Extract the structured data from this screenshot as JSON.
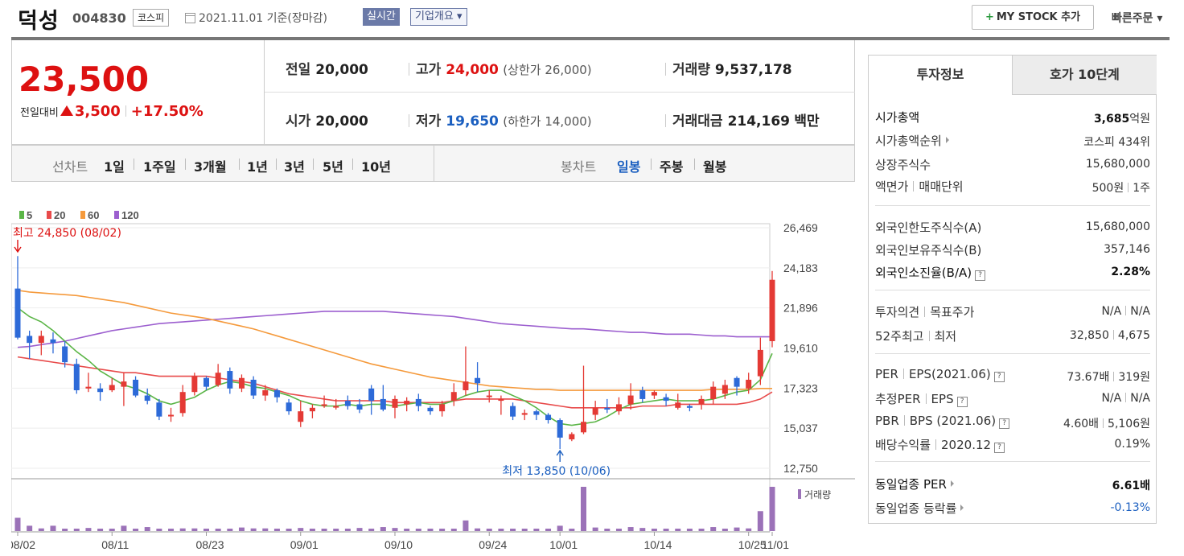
{
  "header": {
    "name": "덕성",
    "code": "004830",
    "market": "코스피",
    "date": "2021.11.01 기준(장마감)",
    "realtime": "실시간",
    "company": "기업개요 ▾",
    "mystock": "MY STOCK 추가",
    "mystock_plus": "+",
    "quick": "빠른주문 ▾"
  },
  "price": {
    "current": "23,500",
    "change_label": "전일대비",
    "change": "3,500",
    "change_pct": "+17.50%",
    "prev_label": "전일",
    "prev": "20,000",
    "open_label": "시가",
    "open": "20,000",
    "high_label": "고가",
    "high": "24,000",
    "high_limit": "(상한가 26,000)",
    "low_label": "저가",
    "low": "19,650",
    "low_limit": "(하한가 14,000)",
    "volume_label": "거래량",
    "volume": "9,537,178",
    "amount_label": "거래대금",
    "amount": "214,169",
    "amount_unit": "백만"
  },
  "toolbar": {
    "line_label": "선차트",
    "periods": [
      "1일",
      "1주일",
      "3개월",
      "1년",
      "3년",
      "5년",
      "10년"
    ],
    "candle_label": "봉차트",
    "candles": [
      "일봉",
      "주봉",
      "월봉"
    ],
    "active_candle": "일봉"
  },
  "chart_data": {
    "type": "candlestick",
    "legend": [
      "5",
      "20",
      "60",
      "120"
    ],
    "legend_colors": [
      "#5ab546",
      "#e84a4a",
      "#f59a3c",
      "#9c5fcf"
    ],
    "yticks": [
      "26,469",
      "24,183",
      "21,896",
      "19,610",
      "17,323",
      "15,037",
      "12,750"
    ],
    "ylim": [
      12750,
      26469
    ],
    "xticks": [
      "08/02",
      "08/11",
      "08/23",
      "09/01",
      "09/10",
      "09/24",
      "10/01",
      "10/14",
      "10/25",
      "11/01"
    ],
    "high_note": "최고 24,850 (08/02)",
    "low_note": "최저 13,850 (10/06)",
    "volume_label": "거래량",
    "candles": [
      [
        23000,
        20200,
        24850,
        20100
      ],
      [
        20300,
        19900,
        20600,
        19000
      ],
      [
        19900,
        20300,
        20600,
        19200
      ],
      [
        20100,
        19900,
        20500,
        19300
      ],
      [
        19700,
        18800,
        20000,
        18500
      ],
      [
        18700,
        17200,
        19000,
        17000
      ],
      [
        17300,
        17400,
        18200,
        17100
      ],
      [
        17300,
        17100,
        17600,
        16600
      ],
      [
        17200,
        17500,
        17900,
        17100
      ],
      [
        17400,
        17700,
        18200,
        16300
      ],
      [
        17800,
        16900,
        18000,
        16800
      ],
      [
        16900,
        16600,
        17300,
        16400
      ],
      [
        16500,
        15700,
        16700,
        15500
      ],
      [
        15800,
        15800,
        16200,
        15400
      ],
      [
        15900,
        17100,
        17500,
        15700
      ],
      [
        17100,
        18000,
        18200,
        16900
      ],
      [
        17900,
        17400,
        18000,
        17200
      ],
      [
        17500,
        18200,
        18700,
        17400
      ],
      [
        18300,
        17300,
        18500,
        17000
      ],
      [
        17300,
        17900,
        18100,
        17100
      ],
      [
        17800,
        16900,
        18000,
        16700
      ],
      [
        16900,
        17200,
        17500,
        16600
      ],
      [
        17200,
        16800,
        17300,
        16500
      ],
      [
        16500,
        16000,
        16700,
        15800
      ],
      [
        15400,
        16000,
        16600,
        15100
      ],
      [
        16000,
        16200,
        16400,
        15600
      ],
      [
        16400,
        16400,
        16900,
        16200
      ],
      [
        16300,
        16300,
        16700,
        16100
      ],
      [
        16600,
        16300,
        16900,
        16100
      ],
      [
        16400,
        16100,
        16700,
        15900
      ],
      [
        17300,
        16600,
        17500,
        15800
      ],
      [
        16700,
        16100,
        17500,
        16000
      ],
      [
        16200,
        16700,
        16900,
        15600
      ],
      [
        16400,
        16600,
        16800,
        16000
      ],
      [
        16700,
        16300,
        17000,
        16000
      ],
      [
        16200,
        16000,
        16300,
        15800
      ],
      [
        16000,
        16400,
        16600,
        15700
      ],
      [
        16600,
        17100,
        17600,
        16300
      ],
      [
        17200,
        17700,
        19700,
        16900
      ],
      [
        17900,
        17600,
        18800,
        17100
      ],
      [
        16900,
        16900,
        17200,
        16500
      ],
      [
        16600,
        16700,
        16900,
        15800
      ],
      [
        16300,
        15700,
        16500,
        15500
      ],
      [
        15800,
        15900,
        16100,
        15500
      ],
      [
        16000,
        15800,
        16100,
        15500
      ],
      [
        15800,
        15500,
        15900,
        15300
      ],
      [
        15500,
        14500,
        15600,
        13850
      ],
      [
        14400,
        14700,
        14800,
        14300
      ],
      [
        14800,
        15400,
        18600,
        14700
      ],
      [
        15800,
        16200,
        16600,
        15500
      ],
      [
        16200,
        16100,
        16700,
        15900
      ],
      [
        16000,
        16400,
        16800,
        15800
      ],
      [
        16400,
        16900,
        17600,
        16100
      ],
      [
        17200,
        16700,
        17400,
        16500
      ],
      [
        16900,
        17100,
        17200,
        16700
      ],
      [
        16800,
        16600,
        17000,
        16300
      ],
      [
        16200,
        16500,
        17000,
        16100
      ],
      [
        16300,
        16200,
        16400,
        16000
      ],
      [
        16400,
        16700,
        16900,
        16100
      ],
      [
        16700,
        17400,
        17700,
        16400
      ],
      [
        17000,
        17500,
        17800,
        16700
      ],
      [
        17900,
        17400,
        18000,
        16900
      ],
      [
        17300,
        17800,
        18200,
        17000
      ],
      [
        18000,
        19500,
        20200,
        17500
      ],
      [
        20000,
        23500,
        24000,
        19650
      ]
    ],
    "ma5": [
      21900,
      21400,
      21100,
      20600,
      20000,
      19400,
      18900,
      18300,
      17900,
      17500,
      17300,
      17000,
      16600,
      16400,
      16600,
      16800,
      17200,
      17500,
      17700,
      17600,
      17400,
      17300,
      17100,
      16900,
      16600,
      16400,
      16300,
      16300,
      16400,
      16300,
      16400,
      16400,
      16300,
      16400,
      16500,
      16400,
      16400,
      16600,
      16900,
      17100,
      17200,
      17200,
      16900,
      16600,
      16200,
      15700,
      15300,
      15200,
      15300,
      15400,
      15700,
      16100,
      16400,
      16500,
      16600,
      16700,
      16600,
      16600,
      16600,
      16700,
      16900,
      17100,
      17200,
      17800,
      19300
    ],
    "ma20": [
      19100,
      19000,
      18900,
      18800,
      18700,
      18600,
      18500,
      18400,
      18300,
      18200,
      18200,
      18100,
      18000,
      18000,
      18000,
      18000,
      18000,
      17900,
      17800,
      17700,
      17600,
      17400,
      17200,
      17000,
      16900,
      16800,
      16700,
      16600,
      16600,
      16600,
      16600,
      16600,
      16500,
      16500,
      16500,
      16500,
      16500,
      16600,
      16700,
      16700,
      16700,
      16700,
      16700,
      16600,
      16500,
      16400,
      16300,
      16200,
      16200,
      16200,
      16200,
      16200,
      16200,
      16300,
      16300,
      16300,
      16400,
      16400,
      16400,
      16400,
      16400,
      16400,
      16500,
      16700,
      17100
    ],
    "ma60": [
      22900,
      22800,
      22750,
      22700,
      22650,
      22600,
      22500,
      22400,
      22300,
      22200,
      22050,
      21900,
      21750,
      21600,
      21500,
      21400,
      21300,
      21150,
      21000,
      20850,
      20700,
      20500,
      20300,
      20100,
      19900,
      19700,
      19500,
      19300,
      19100,
      18900,
      18700,
      18550,
      18400,
      18250,
      18100,
      17950,
      17850,
      17750,
      17650,
      17550,
      17450,
      17400,
      17350,
      17300,
      17250,
      17250,
      17200,
      17200,
      17200,
      17200,
      17200,
      17200,
      17200,
      17200,
      17200,
      17200,
      17200,
      17200,
      17200,
      17250,
      17250,
      17250,
      17250,
      17300,
      17300
    ],
    "ma120": [
      19650,
      19700,
      19800,
      19900,
      20000,
      20150,
      20300,
      20450,
      20600,
      20700,
      20800,
      20900,
      21000,
      21050,
      21100,
      21150,
      21200,
      21250,
      21300,
      21350,
      21400,
      21450,
      21500,
      21550,
      21600,
      21650,
      21700,
      21700,
      21700,
      21700,
      21700,
      21700,
      21650,
      21600,
      21550,
      21500,
      21450,
      21400,
      21300,
      21200,
      21100,
      21000,
      20950,
      20900,
      20850,
      20800,
      20750,
      20700,
      20700,
      20650,
      20600,
      20550,
      20500,
      20500,
      20450,
      20400,
      20400,
      20400,
      20350,
      20300,
      20300,
      20250,
      20250,
      20250,
      20250
    ],
    "volume": [
      30,
      12,
      6,
      12,
      5,
      5,
      7,
      5,
      5,
      12,
      5,
      9,
      5,
      5,
      6,
      6,
      5,
      5,
      5,
      8,
      6,
      6,
      5,
      5,
      7,
      5,
      5,
      5,
      5,
      7,
      5,
      9,
      7,
      5,
      5,
      4,
      5,
      5,
      24,
      6,
      5,
      5,
      5,
      5,
      5,
      4,
      12,
      4,
      100,
      8,
      5,
      5,
      9,
      7,
      4,
      5,
      5,
      5,
      5,
      9,
      5,
      8,
      6,
      45,
      100
    ]
  },
  "invest": {
    "tab1": "투자정보",
    "tab2": "호가 10단계",
    "rows": [
      {
        "l": "시가총액",
        "v": "3,685",
        "vu": "억원"
      },
      {
        "l": "시가총액순위",
        "v": "코스피 434위"
      },
      {
        "l": "상장주식수",
        "v": "15,680,000"
      },
      {
        "l1": "액면가",
        "l2": "매매단위",
        "v1": "500원",
        "v2": "1주"
      },
      {
        "l": "외국인한도주식수(A)",
        "v": "15,680,000"
      },
      {
        "l": "외국인보유주식수(B)",
        "v": "357,146"
      },
      {
        "l": "외국인소진율(B/A)",
        "v": "2.28%"
      },
      {
        "l1": "투자의견",
        "l2": "목표주가",
        "v1": "N/A",
        "v2": "N/A"
      },
      {
        "l1": "52주최고",
        "l2": "최저",
        "v1": "32,850",
        "v2": "4,675"
      },
      {
        "l1": "PER",
        "l2": "EPS(2021.06)",
        "v1": "73.67배",
        "v2": "319원"
      },
      {
        "l1": "추정PER",
        "l2": "EPS",
        "v1": "N/A",
        "v2": "N/A"
      },
      {
        "l1": "PBR",
        "l2": "BPS (2021.06)",
        "v1": "4.60배",
        "v2": "5,106원"
      },
      {
        "l1": "배당수익률",
        "l2": "2020.12",
        "v": "0.19%"
      },
      {
        "l": "동일업종 PER",
        "v": "6.61",
        "vu": "배"
      },
      {
        "l": "동일업종 등락률",
        "v": "-0.13%"
      }
    ],
    "q": "?"
  }
}
